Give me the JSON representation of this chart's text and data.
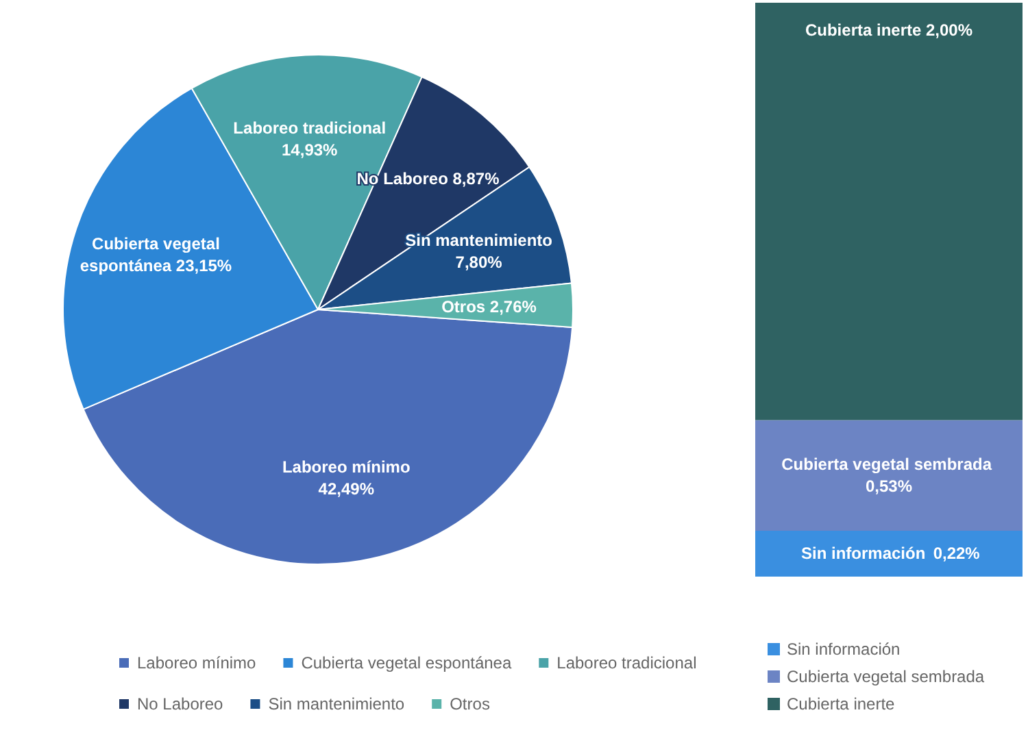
{
  "chart_data": [
    {
      "type": "pie",
      "categories": [
        "Laboreo mínimo",
        "Cubierta vegetal espontánea",
        "Laboreo tradicional",
        "No Laboreo",
        "Sin mantenimiento",
        "Otros"
      ],
      "values": [
        42.49,
        23.15,
        14.93,
        8.87,
        7.8,
        2.76
      ],
      "value_labels": [
        "42,49%",
        "23,15%",
        "14,93%",
        "8,87%",
        "7,80%",
        "2,76%"
      ],
      "colors": [
        "#4a6cb8",
        "#2c86d6",
        "#4aa3a8",
        "#1f3866",
        "#1c4e86",
        "#5ab3aa"
      ],
      "legend": "bottom"
    },
    {
      "type": "bar",
      "stacked": true,
      "categories": [
        null
      ],
      "series": [
        {
          "name": "Sin información",
          "color": "#3a8fe0",
          "values": [
            0.22
          ],
          "value_labels": [
            "0,22%"
          ]
        },
        {
          "name": "Cubierta vegetal sembrada",
          "color": "#6c84c4",
          "values": [
            0.53
          ],
          "value_labels": [
            "0,53%"
          ]
        },
        {
          "name": "Cubierta inerte",
          "color": "#2f6262",
          "values": [
            2.0
          ],
          "value_labels": [
            "2,00%"
          ]
        }
      ],
      "legend": "bottom"
    }
  ]
}
